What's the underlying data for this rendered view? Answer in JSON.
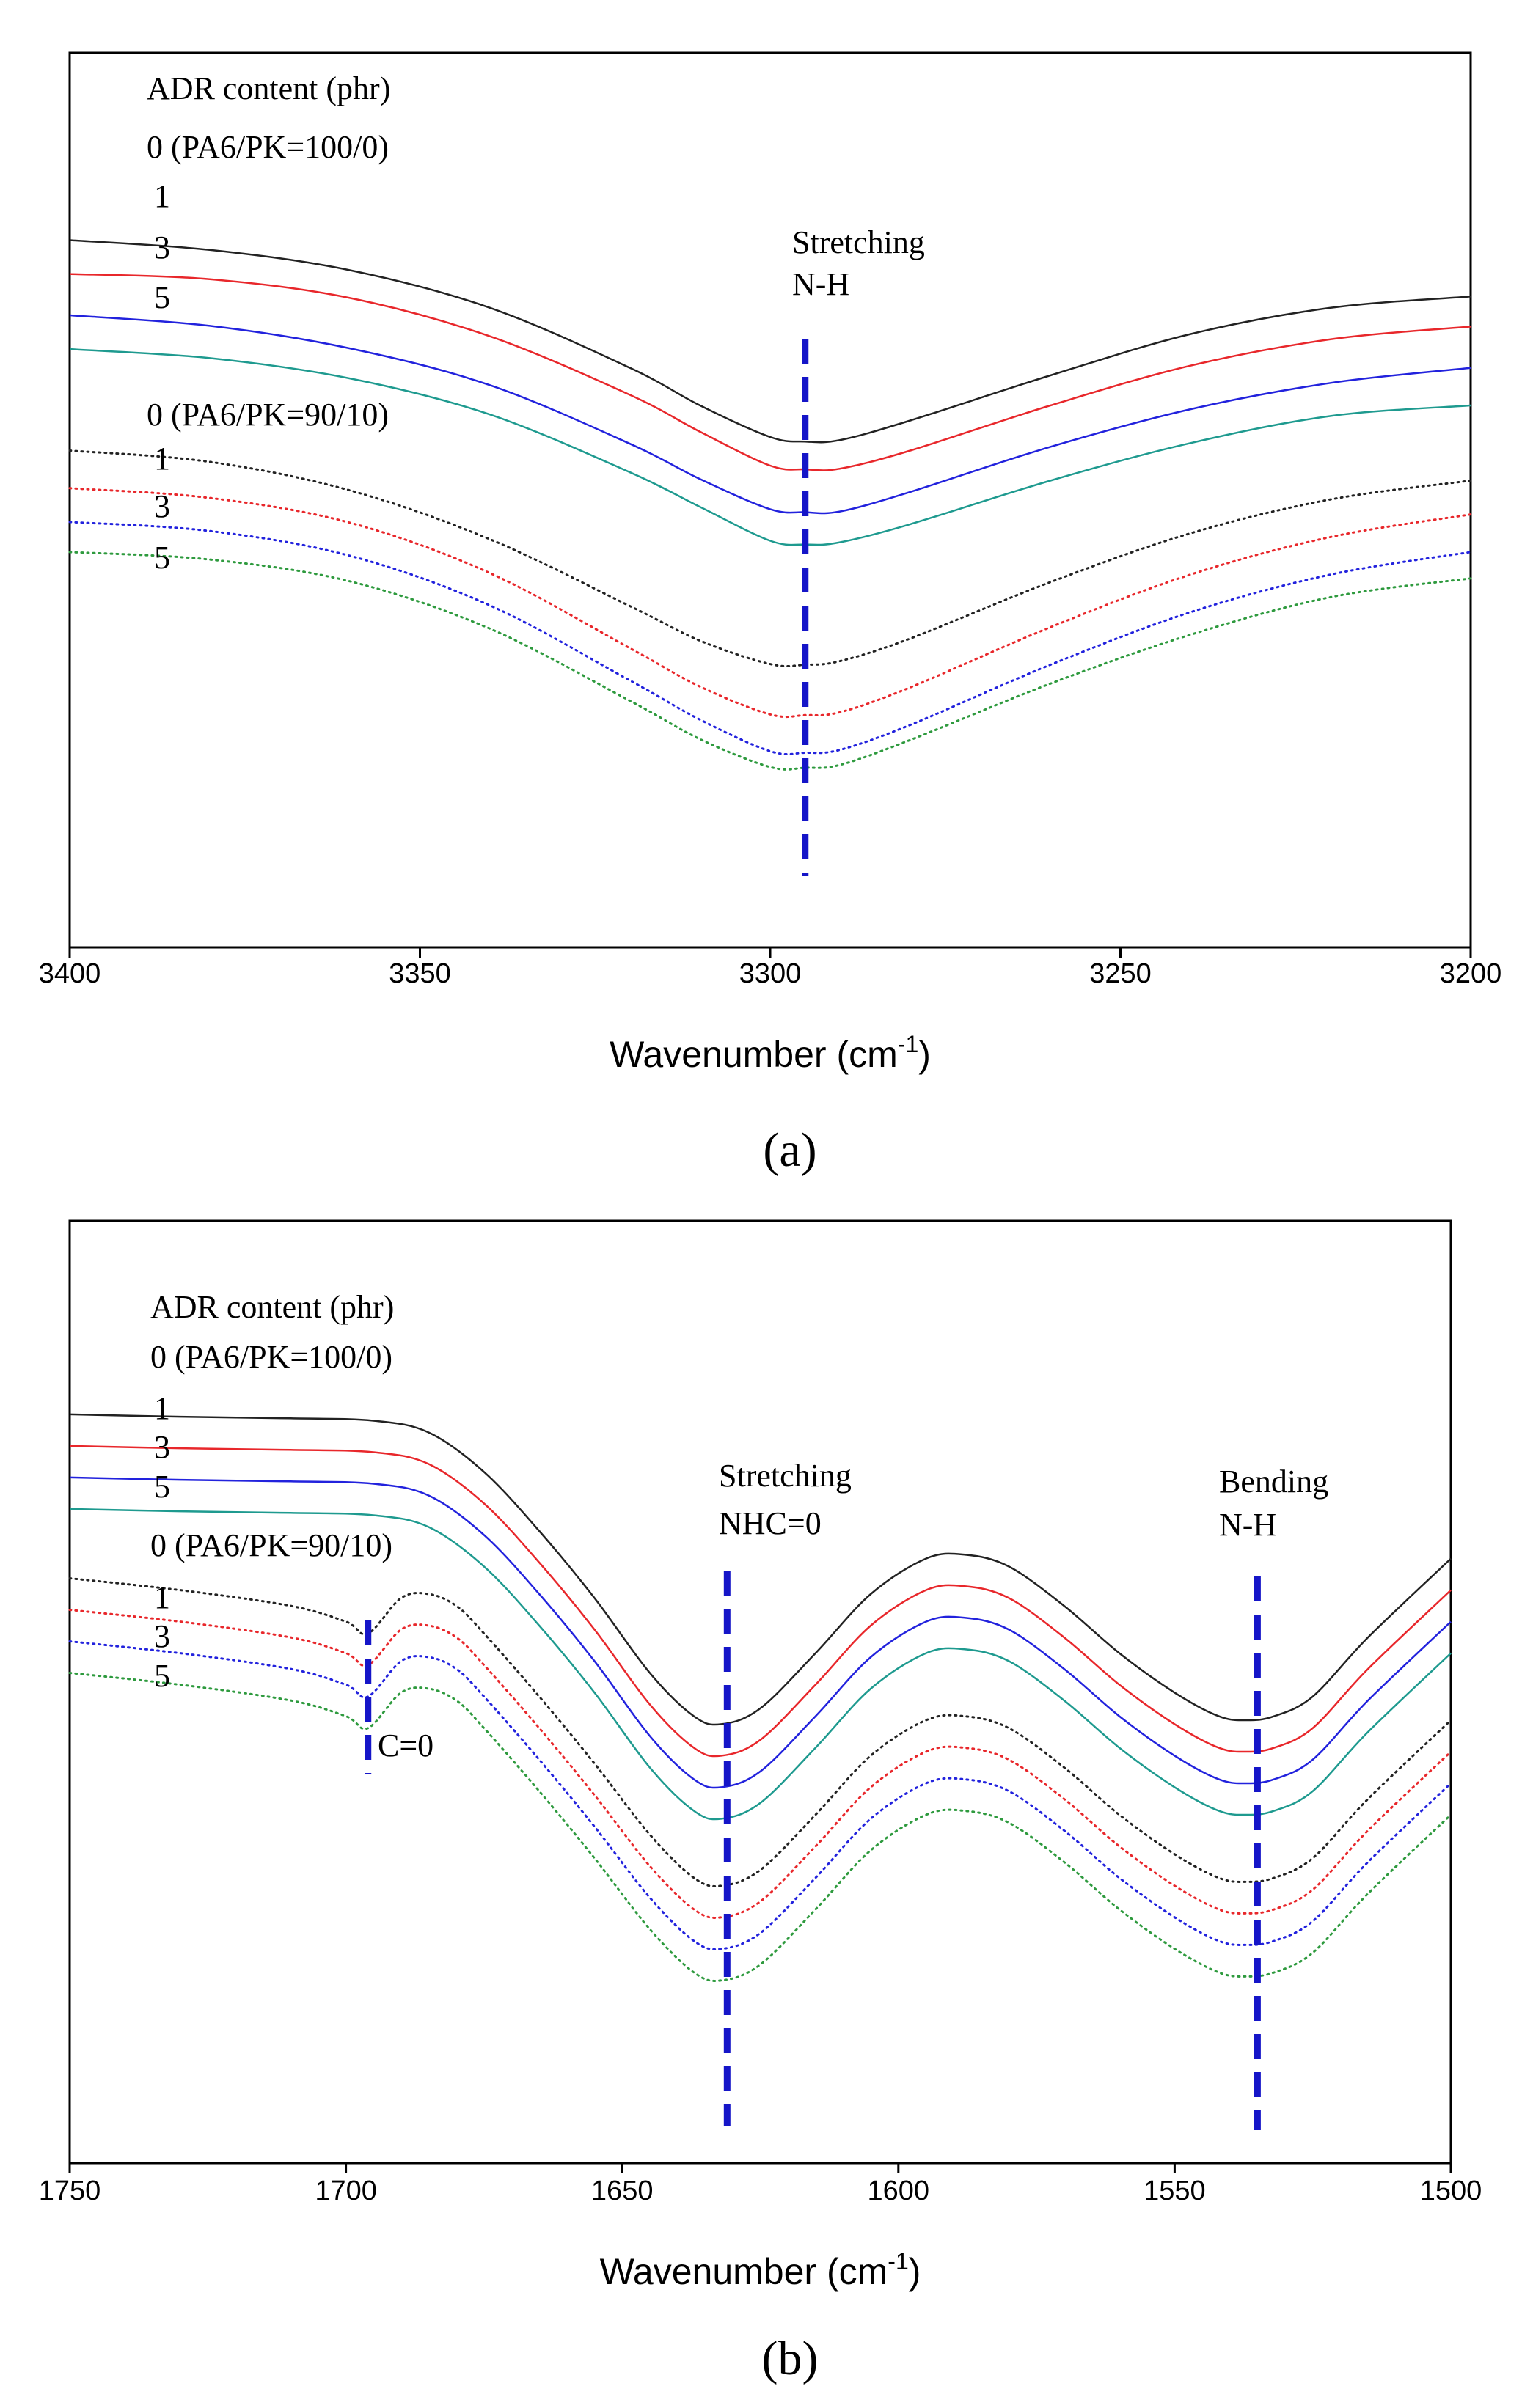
{
  "chart_data": [
    {
      "panel_label": "(a)",
      "type": "line",
      "xlabel": "Wavenumber (cm",
      "xlabel_sup": "-1",
      "xlabel_close": ")",
      "ylabel": "",
      "xlim": [
        3400,
        3200
      ],
      "x_reversed": true,
      "y_ticks_shown": false,
      "grid": false,
      "x_ticks": [
        "3400",
        "3350",
        "3300",
        "3250",
        "3200"
      ],
      "x_tick_values": [
        3400,
        3350,
        3300,
        3250,
        3200
      ],
      "legend": {
        "title": "ADR content (phr)",
        "placement": "top-left",
        "group_labels": [
          "0 (PA6/PK=100/0)",
          "0 (PA6/PK=90/10)"
        ],
        "entries": [
          "0 (PA6/PK=100/0)",
          "1",
          "3",
          "5",
          "0 (PA6/PK=90/10)",
          "1",
          "3",
          "5"
        ]
      },
      "annotations": [
        {
          "text": "Stretching",
          "text2": "N-H",
          "x": 3295,
          "type": "dashed-marker"
        }
      ],
      "series": [
        {
          "name": "0 (PA6/PK=100/0)",
          "color": "#222222",
          "style": "solid",
          "x": [
            3400,
            3380,
            3360,
            3340,
            3320,
            3310,
            3300,
            3295,
            3290,
            3280,
            3260,
            3240,
            3220,
            3200
          ],
          "y": [
            90.0,
            88.7,
            86.0,
            81.0,
            73.0,
            68.0,
            63.8,
            63.2,
            63.4,
            66.0,
            72.0,
            77.5,
            81.0,
            82.5
          ]
        },
        {
          "name": "1",
          "color": "#e8272b",
          "style": "solid",
          "x": [
            3400,
            3380,
            3360,
            3340,
            3320,
            3310,
            3300,
            3295,
            3290,
            3280,
            3260,
            3240,
            3220,
            3200
          ],
          "y": [
            85.5,
            84.8,
            82.3,
            77.2,
            69.4,
            64.5,
            60.0,
            59.5,
            59.6,
            62.0,
            68.0,
            73.3,
            76.8,
            78.5
          ]
        },
        {
          "name": "3",
          "color": "#2222dd",
          "style": "solid",
          "x": [
            3400,
            3380,
            3360,
            3340,
            3320,
            3310,
            3300,
            3295,
            3290,
            3280,
            3260,
            3240,
            3220,
            3200
          ],
          "y": [
            80.0,
            78.6,
            75.6,
            70.7,
            62.9,
            58.2,
            54.2,
            53.8,
            53.9,
            56.5,
            62.5,
            67.5,
            71.0,
            73.0
          ]
        },
        {
          "name": "5",
          "color": "#1e9a8f",
          "style": "solid",
          "x": [
            3400,
            3380,
            3360,
            3340,
            3320,
            3310,
            3300,
            3295,
            3290,
            3280,
            3260,
            3240,
            3220,
            3200
          ],
          "y": [
            75.5,
            74.3,
            71.6,
            66.8,
            59.1,
            54.5,
            50.0,
            49.5,
            49.8,
            52.2,
            58.0,
            63.0,
            66.6,
            68.0
          ]
        },
        {
          "name": "0 (PA6/PK=90/10)",
          "color": "#222222",
          "style": "dotted",
          "x": [
            3400,
            3380,
            3360,
            3340,
            3320,
            3310,
            3300,
            3295,
            3290,
            3280,
            3260,
            3240,
            3220,
            3200
          ],
          "y": [
            62.0,
            60.5,
            56.7,
            50.2,
            41.3,
            36.7,
            33.6,
            33.5,
            34.0,
            37.0,
            44.5,
            51.0,
            55.5,
            58.0
          ]
        },
        {
          "name": "1",
          "color": "#e8272b",
          "style": "dotted",
          "x": [
            3400,
            3380,
            3360,
            3340,
            3320,
            3310,
            3300,
            3295,
            3290,
            3280,
            3260,
            3240,
            3220,
            3200
          ],
          "y": [
            57.0,
            55.7,
            52.4,
            45.7,
            35.7,
            30.6,
            26.9,
            26.8,
            27.2,
            30.5,
            38.5,
            45.5,
            50.5,
            53.5
          ]
        },
        {
          "name": "3",
          "color": "#2222dd",
          "style": "dotted",
          "x": [
            3400,
            3380,
            3360,
            3340,
            3320,
            3310,
            3300,
            3295,
            3290,
            3280,
            3260,
            3240,
            3220,
            3200
          ],
          "y": [
            52.5,
            51.3,
            48.0,
            41.4,
            31.4,
            26.2,
            22.0,
            21.8,
            22.2,
            25.5,
            33.5,
            40.5,
            45.5,
            48.5
          ]
        },
        {
          "name": "5",
          "color": "#2e9a3e",
          "style": "dotted",
          "x": [
            3400,
            3380,
            3360,
            3340,
            3320,
            3310,
            3300,
            3295,
            3290,
            3280,
            3260,
            3240,
            3220,
            3200
          ],
          "y": [
            48.5,
            47.5,
            44.6,
            38.3,
            28.7,
            23.6,
            19.9,
            19.8,
            20.2,
            23.5,
            31.0,
            37.5,
            42.5,
            45.0
          ]
        }
      ]
    },
    {
      "panel_label": "(b)",
      "type": "line",
      "xlabel": "Wavenumber (cm",
      "xlabel_sup": "-1",
      "xlabel_close": ")",
      "ylabel": "",
      "xlim": [
        1750,
        1500
      ],
      "x_reversed": true,
      "y_ticks_shown": false,
      "grid": false,
      "x_ticks": [
        "1750",
        "1700",
        "1650",
        "1600",
        "1550",
        "1500"
      ],
      "x_tick_values": [
        1750,
        1700,
        1650,
        1600,
        1550,
        1500
      ],
      "legend": {
        "title": "ADR content (phr)",
        "placement": "top-left",
        "group_labels": [
          "0 (PA6/PK=100/0)",
          "0  (PA6/PK=90/10)"
        ],
        "entries": [
          "0 (PA6/PK=100/0)",
          "1",
          "3",
          "5",
          "0  (PA6/PK=90/10)",
          "1",
          "3",
          "5"
        ]
      },
      "annotations": [
        {
          "text": "Stretching",
          "text2": "NHC=0",
          "x": 1631,
          "type": "dashed-marker"
        },
        {
          "text": "Bending",
          "text2": "N-H",
          "x": 1535,
          "type": "dashed-marker"
        },
        {
          "text": "C=0",
          "text2": "",
          "x": 1696,
          "type": "dashed-marker"
        }
      ],
      "series": [
        {
          "name": "0 (PA6/PK=100/0)",
          "color": "#222222",
          "style": "solid",
          "x": [
            1750,
            1730,
            1710,
            1695,
            1685,
            1675,
            1665,
            1655,
            1645,
            1637,
            1632,
            1625,
            1615,
            1605,
            1595,
            1588,
            1580,
            1570,
            1560,
            1550,
            1542,
            1537,
            1532,
            1525,
            1515,
            1500
          ],
          "y": [
            90.8,
            90.5,
            90.3,
            90.0,
            88.5,
            83.5,
            76.0,
            67.5,
            58.0,
            52.5,
            51.5,
            53.5,
            60.5,
            68.0,
            72.5,
            73.0,
            71.5,
            66.5,
            60.5,
            55.5,
            52.5,
            52.0,
            52.5,
            55.0,
            62.5,
            72.5
          ]
        },
        {
          "name": "1",
          "color": "#e8272b",
          "style": "solid",
          "x": [
            1750,
            1730,
            1710,
            1695,
            1685,
            1675,
            1665,
            1655,
            1645,
            1637,
            1632,
            1625,
            1615,
            1605,
            1595,
            1588,
            1580,
            1570,
            1560,
            1550,
            1542,
            1537,
            1532,
            1525,
            1515,
            1500
          ],
          "y": [
            86.8,
            86.5,
            86.3,
            86.0,
            84.5,
            79.5,
            72.0,
            63.5,
            54.0,
            48.5,
            47.5,
            49.5,
            56.5,
            64.0,
            68.5,
            69.0,
            67.5,
            62.5,
            56.5,
            51.5,
            48.5,
            48.0,
            48.5,
            51.0,
            58.5,
            68.5
          ]
        },
        {
          "name": "3",
          "color": "#2222dd",
          "style": "solid",
          "x": [
            1750,
            1730,
            1710,
            1695,
            1685,
            1675,
            1665,
            1655,
            1645,
            1637,
            1632,
            1625,
            1615,
            1605,
            1595,
            1588,
            1580,
            1570,
            1560,
            1550,
            1542,
            1537,
            1532,
            1525,
            1515,
            1500
          ],
          "y": [
            82.8,
            82.5,
            82.3,
            82.0,
            80.5,
            75.5,
            68.0,
            59.5,
            50.0,
            44.5,
            43.5,
            45.5,
            52.5,
            60.0,
            64.5,
            65.0,
            63.5,
            58.5,
            52.5,
            47.5,
            44.5,
            44.0,
            44.5,
            47.0,
            54.5,
            64.5
          ]
        },
        {
          "name": "5",
          "color": "#1e9a8f",
          "style": "solid",
          "x": [
            1750,
            1730,
            1710,
            1695,
            1685,
            1675,
            1665,
            1655,
            1645,
            1637,
            1632,
            1625,
            1615,
            1605,
            1595,
            1588,
            1580,
            1570,
            1560,
            1550,
            1542,
            1537,
            1532,
            1525,
            1515,
            1500
          ],
          "y": [
            78.8,
            78.5,
            78.3,
            78.0,
            76.5,
            71.5,
            64.0,
            55.5,
            46.0,
            40.5,
            39.5,
            41.5,
            48.5,
            56.0,
            60.5,
            61.0,
            59.5,
            54.5,
            48.5,
            43.5,
            40.5,
            40.0,
            40.5,
            43.0,
            50.5,
            60.5
          ]
        },
        {
          "name": "0  (PA6/PK=90/10)",
          "color": "#222222",
          "style": "dotted",
          "x": [
            1750,
            1730,
            1710,
            1700,
            1696,
            1690,
            1685,
            1680,
            1675,
            1665,
            1655,
            1645,
            1637,
            1632,
            1625,
            1615,
            1605,
            1595,
            1588,
            1580,
            1570,
            1560,
            1550,
            1542,
            1537,
            1532,
            1525,
            1515,
            1500
          ],
          "y": [
            70.0,
            68.5,
            66.5,
            64.5,
            63.0,
            67.5,
            68.0,
            66.5,
            63.0,
            55.0,
            46.5,
            37.5,
            32.0,
            31.0,
            33.0,
            40.0,
            47.5,
            52.0,
            52.5,
            51.0,
            46.0,
            40.0,
            35.0,
            32.0,
            31.5,
            32.0,
            34.5,
            42.0,
            52.0
          ]
        },
        {
          "name": "1",
          "color": "#e8272b",
          "style": "dotted",
          "x": [
            1750,
            1730,
            1710,
            1700,
            1696,
            1690,
            1685,
            1680,
            1675,
            1665,
            1655,
            1645,
            1637,
            1632,
            1625,
            1615,
            1605,
            1595,
            1588,
            1580,
            1570,
            1560,
            1550,
            1542,
            1537,
            1532,
            1525,
            1515,
            1500
          ],
          "y": [
            66.0,
            64.5,
            62.5,
            60.5,
            59.0,
            63.5,
            64.0,
            62.5,
            59.0,
            51.0,
            42.5,
            33.5,
            28.0,
            27.0,
            29.0,
            36.0,
            43.5,
            48.0,
            48.5,
            47.0,
            42.0,
            36.0,
            31.0,
            28.0,
            27.5,
            28.0,
            30.5,
            38.0,
            48.0
          ]
        },
        {
          "name": "3",
          "color": "#2222dd",
          "style": "dotted",
          "x": [
            1750,
            1730,
            1710,
            1700,
            1696,
            1690,
            1685,
            1680,
            1675,
            1665,
            1655,
            1645,
            1637,
            1632,
            1625,
            1615,
            1605,
            1595,
            1588,
            1580,
            1570,
            1560,
            1550,
            1542,
            1537,
            1532,
            1525,
            1515,
            1500
          ],
          "y": [
            62.0,
            60.5,
            58.5,
            56.5,
            55.0,
            59.5,
            60.0,
            58.5,
            55.0,
            47.0,
            38.5,
            29.5,
            24.0,
            23.0,
            25.0,
            32.0,
            39.5,
            44.0,
            44.5,
            43.0,
            38.0,
            32.0,
            27.0,
            24.0,
            23.5,
            24.0,
            26.5,
            34.0,
            44.0
          ]
        },
        {
          "name": "5",
          "color": "#2e9a3e",
          "style": "dotted",
          "x": [
            1750,
            1730,
            1710,
            1700,
            1696,
            1690,
            1685,
            1680,
            1675,
            1665,
            1655,
            1645,
            1637,
            1632,
            1625,
            1615,
            1605,
            1595,
            1588,
            1580,
            1570,
            1560,
            1550,
            1542,
            1537,
            1532,
            1525,
            1515,
            1500
          ],
          "y": [
            58.0,
            56.5,
            54.5,
            52.5,
            51.0,
            55.5,
            56.0,
            54.5,
            51.0,
            43.0,
            34.5,
            25.5,
            20.0,
            19.0,
            21.0,
            28.0,
            35.5,
            40.0,
            40.5,
            39.0,
            34.0,
            28.0,
            23.0,
            20.0,
            19.5,
            20.0,
            22.5,
            30.0,
            40.0
          ]
        }
      ]
    }
  ]
}
